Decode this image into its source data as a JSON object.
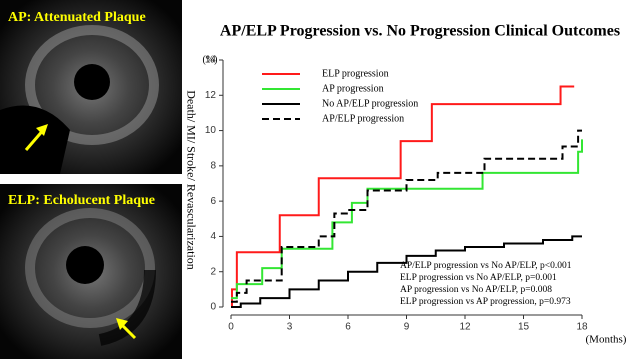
{
  "panels": [
    {
      "label": "AP: Attenuated Plaque"
    },
    {
      "label": "ELP: Echolucent Plaque"
    }
  ],
  "chart_data": {
    "type": "line",
    "step": true,
    "title": "AP/ELP Progression vs. No Progression Clinical Outcomes",
    "y_label": "Death/ MI/ Stroke/ Revascularization",
    "y_unit": "(%)",
    "x_unit": "(Months)",
    "xlim": [
      0,
      18
    ],
    "xticks": [
      0,
      3,
      6,
      9,
      12,
      15,
      18
    ],
    "ylim": [
      0,
      14
    ],
    "yticks": [
      0,
      2,
      4,
      6,
      8,
      10,
      12,
      14
    ],
    "legend": "upper left",
    "series": [
      {
        "name": "ELP progression",
        "color": "#ff1a1a",
        "dash": false,
        "x": [
          0,
          0.05,
          0.3,
          2.5,
          4.5,
          8.7,
          10.3,
          16.9,
          17.6
        ],
        "values": [
          0,
          1,
          3.1,
          5.2,
          7.3,
          9.4,
          11.5,
          12.5,
          12.5
        ]
      },
      {
        "name": "AP progression",
        "color": "#33e633",
        "dash": false,
        "x": [
          0,
          0.3,
          1.6,
          2.6,
          5.2,
          6.2,
          7.0,
          12.9,
          17.8,
          18
        ],
        "values": [
          0.5,
          1.3,
          2.2,
          3.3,
          4.8,
          5.9,
          6.7,
          7.6,
          8.8,
          9.5
        ]
      },
      {
        "name": "No AP/ELP progression",
        "color": "#000000",
        "dash": false,
        "x": [
          0,
          0.5,
          1.5,
          3,
          4.5,
          6,
          7.5,
          9,
          10.5,
          12,
          14,
          16,
          17.5,
          18
        ],
        "values": [
          0,
          0.2,
          0.5,
          1.0,
          1.5,
          2.0,
          2.5,
          2.9,
          3.2,
          3.4,
          3.6,
          3.8,
          4.0,
          4.0
        ]
      },
      {
        "name": "AP/ELP progression",
        "color": "#000000",
        "dash": true,
        "x": [
          0,
          0.3,
          0.8,
          2.6,
          4.5,
          5.3,
          6,
          7,
          9,
          10.6,
          13,
          17,
          17.8,
          18
        ],
        "values": [
          0.3,
          0.8,
          1.5,
          3.4,
          4.0,
          5.3,
          5.5,
          6.6,
          7.2,
          7.6,
          8.4,
          9.1,
          10.0,
          10.0
        ]
      }
    ],
    "annotations": [
      "AP/ELP progression vs No AP/ELP, p<0.001",
      "ELP progression vs No AP/ELP, p=0.001",
      "AP progression vs No AP/ELP, p=0.008",
      "ELP progression vs AP progression, p=0.973"
    ]
  }
}
